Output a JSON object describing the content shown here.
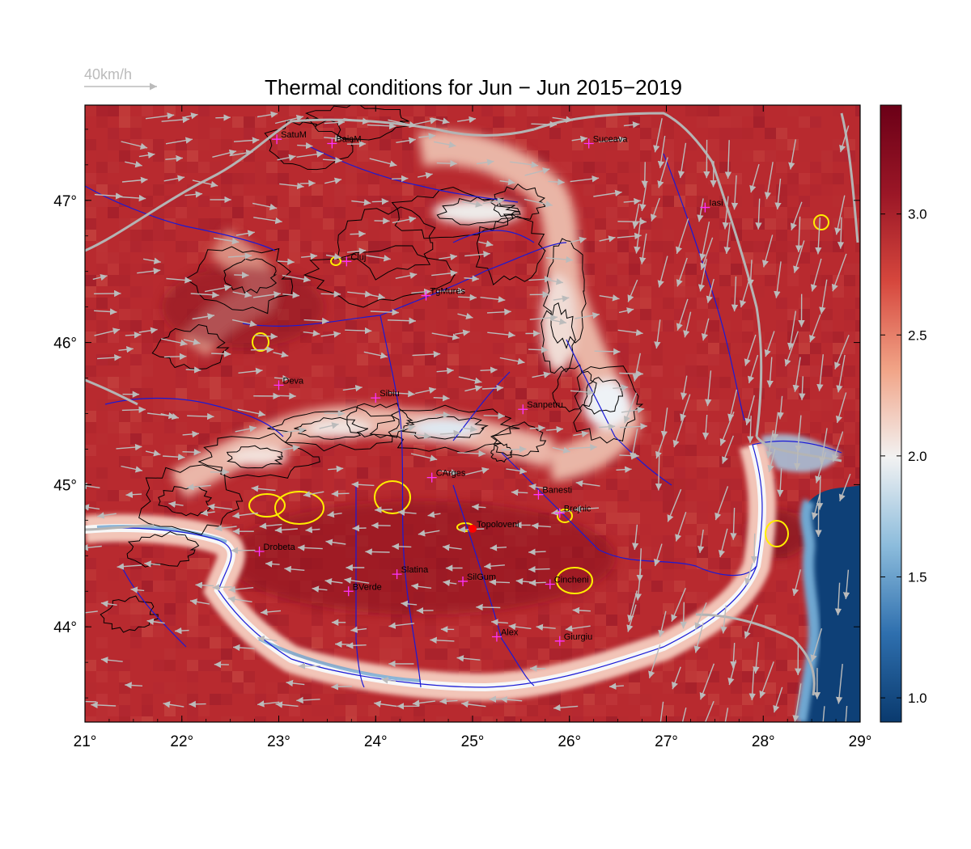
{
  "title": "Thermal conditions for Jun − Jun  2015−2019",
  "wind_scale": {
    "label": "40km/h",
    "color": "#bbbbbb"
  },
  "map": {
    "lon_range": [
      21,
      29
    ],
    "lat_range": [
      43.33,
      47.67
    ],
    "x_ticks": [
      {
        "value": 21,
        "label": "21°"
      },
      {
        "value": 22,
        "label": "22°"
      },
      {
        "value": 23,
        "label": "23°"
      },
      {
        "value": 24,
        "label": "24°"
      },
      {
        "value": 25,
        "label": "25°"
      },
      {
        "value": 26,
        "label": "26°"
      },
      {
        "value": 27,
        "label": "27°"
      },
      {
        "value": 28,
        "label": "28°"
      },
      {
        "value": 29,
        "label": "29°"
      }
    ],
    "y_ticks": [
      {
        "value": 44,
        "label": "44°"
      },
      {
        "value": 45,
        "label": "45°"
      },
      {
        "value": 46,
        "label": "46°"
      },
      {
        "value": 47,
        "label": "47°"
      }
    ],
    "colors": {
      "high": "#b82a2f",
      "low": "#0d3f74",
      "mid": "#f4f4f4",
      "river": "#1a1ad6",
      "border": "#b4b4b4"
    }
  },
  "colorbar": {
    "range": [
      0.9,
      3.45
    ],
    "ticks": [
      {
        "value": 1.0,
        "label": "1.0"
      },
      {
        "value": 1.5,
        "label": "1.5"
      },
      {
        "value": 2.0,
        "label": "2.0"
      },
      {
        "value": 2.5,
        "label": "2.5"
      },
      {
        "value": 3.0,
        "label": "3.0"
      }
    ],
    "stops": [
      "#0a3a6e",
      "#2e6fae",
      "#8cbcdc",
      "#f2f2f2",
      "#f1a487",
      "#d6473d",
      "#9a1626",
      "#6b0017"
    ]
  },
  "cities": [
    {
      "name": "SatuM",
      "lon": 22.98,
      "lat": 47.43
    },
    {
      "name": "BaiaM",
      "lon": 23.55,
      "lat": 47.4
    },
    {
      "name": "Suceava",
      "lon": 26.2,
      "lat": 47.4
    },
    {
      "name": "Iasi",
      "lon": 27.4,
      "lat": 46.95
    },
    {
      "name": "Cluj",
      "lon": 23.7,
      "lat": 46.57
    },
    {
      "name": "TgMures",
      "lon": 24.52,
      "lat": 46.33
    },
    {
      "name": "Deva",
      "lon": 23.0,
      "lat": 45.7
    },
    {
      "name": "Sibiu",
      "lon": 24.0,
      "lat": 45.61
    },
    {
      "name": "Sanpetru",
      "lon": 25.52,
      "lat": 45.53
    },
    {
      "name": "CArges",
      "lon": 24.58,
      "lat": 45.05
    },
    {
      "name": "Banesti",
      "lon": 25.68,
      "lat": 44.93
    },
    {
      "name": "Ploiesti-Brejnic",
      "label": "Brejnic",
      "lon": 25.9,
      "lat": 44.8
    },
    {
      "name": "Topoloveni",
      "lon": 25.0,
      "lat": 44.69
    },
    {
      "name": "Drobeta",
      "lon": 22.8,
      "lat": 44.53
    },
    {
      "name": "Slatina",
      "lon": 24.22,
      "lat": 44.37
    },
    {
      "name": "SilGum",
      "lon": 24.9,
      "lat": 44.32
    },
    {
      "name": "Oltenita-Cincheni",
      "label": "Cincheni",
      "lon": 25.8,
      "lat": 44.3
    },
    {
      "name": "BVerde",
      "lon": 23.72,
      "lat": 44.25
    },
    {
      "name": "Alex",
      "lon": 25.25,
      "lat": 43.93
    },
    {
      "name": "Giurgiu",
      "lon": 25.9,
      "lat": 43.9
    }
  ],
  "highlight_site": "Topoloveni"
}
